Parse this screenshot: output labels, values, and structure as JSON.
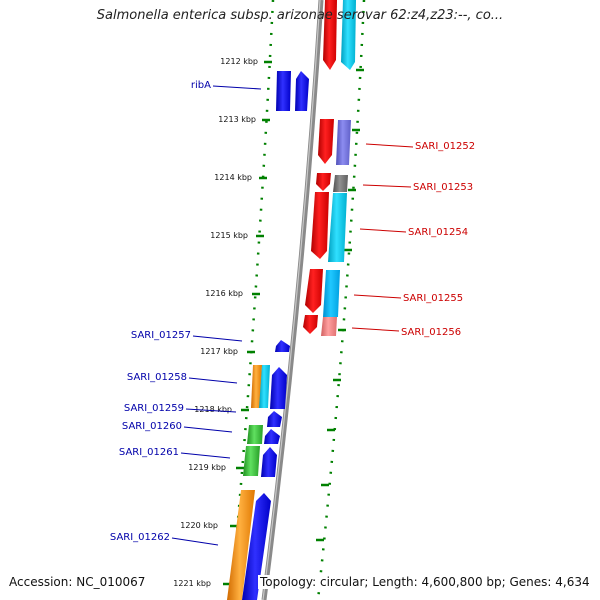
{
  "title": "Salmonella enterica subsp. arizonae serovar 62:z4,z23:--, co...",
  "footer": {
    "accession": "Accession: NC_010067",
    "summary": "Topology: circular; Length: 4,600,800 bp; Genes: 4,634"
  },
  "scale_labels": [
    "1212 kbp",
    "1213 kbp",
    "1214 kbp",
    "1215 kbp",
    "1216 kbp",
    "1217 kbp",
    "1218 kbp",
    "1219 kbp",
    "1220 kbp",
    "1221 kbp"
  ],
  "right_gene_labels": [
    "SARI_01252",
    "SARI_01253",
    "SARI_01254",
    "SARI_01255",
    "SARI_01256"
  ],
  "left_gene_labels": [
    "ribA",
    "SARI_01257",
    "SARI_01258",
    "SARI_01259",
    "SARI_01260",
    "SARI_01261",
    "SARI_01262"
  ],
  "colors": {
    "forward_strand": "#0000ff",
    "reverse_strand": "#ff0000",
    "cyan": "#00c8e6",
    "purple": "#7070d8",
    "gray": "#707070",
    "pink": "#f08080",
    "orange": "#ff8c00",
    "green": "#33bb33",
    "tick_green": "#008000",
    "backbone": "#888888"
  }
}
